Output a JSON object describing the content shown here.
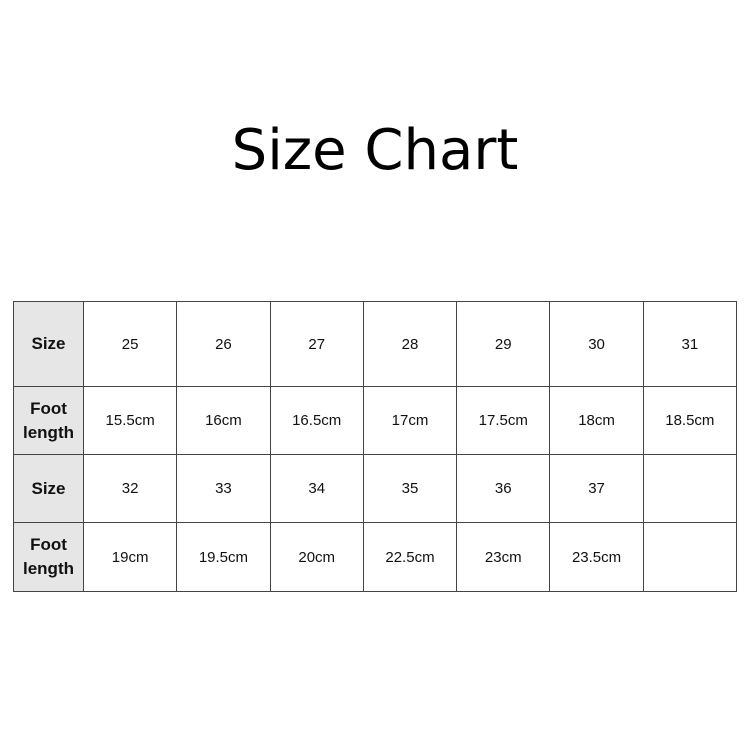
{
  "title": "Size Chart",
  "table": {
    "rows": [
      {
        "header": [
          "Size"
        ],
        "cells": [
          "25",
          "26",
          "27",
          "28",
          "29",
          "30",
          "31"
        ]
      },
      {
        "header": [
          "Foot",
          "length"
        ],
        "cells": [
          "15.5cm",
          "16cm",
          "16.5cm",
          "17cm",
          "17.5cm",
          "18cm",
          "18.5cm"
        ]
      },
      {
        "header": [
          "Size"
        ],
        "cells": [
          "32",
          "33",
          "34",
          "35",
          "36",
          "37",
          ""
        ]
      },
      {
        "header": [
          "Foot",
          "length"
        ],
        "cells": [
          "19cm",
          "19.5cm",
          "20cm",
          "22.5cm",
          "23cm",
          "23.5cm",
          ""
        ]
      }
    ]
  },
  "colors": {
    "header_bg": "#e6e6e6",
    "border": "#444444"
  }
}
